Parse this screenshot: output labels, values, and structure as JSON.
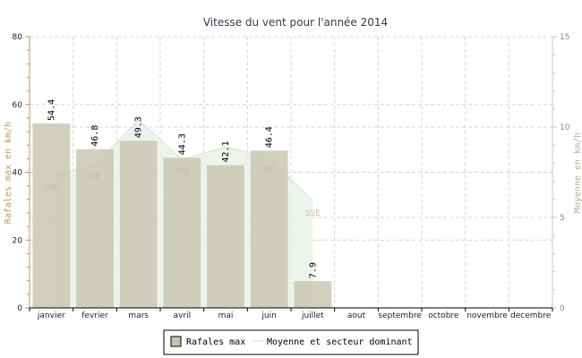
{
  "chart_data": {
    "type": "bar",
    "title": "Vitesse du vent pour l'année 2014",
    "categories": [
      "janvier",
      "fevrier",
      "mars",
      "avril",
      "mai",
      "juin",
      "juillet",
      "aout",
      "septembre",
      "octobre",
      "novembre",
      "decembre"
    ],
    "ylabel": "Rafales max en km/h",
    "ylabel_right": "Moyenne en km/h",
    "ylim": [
      0,
      80
    ],
    "yticks": [
      "0",
      "20",
      "40",
      "60",
      "80"
    ],
    "ylim_right": [
      0,
      15
    ],
    "yticks_right": [
      "0",
      "5",
      "10",
      "15"
    ],
    "grid": true,
    "legend_position": "bottom",
    "series": [
      {
        "name": "Rafales max",
        "type": "bar",
        "color": "#c8c6ae",
        "values": [
          54.4,
          46.8,
          49.3,
          44.3,
          42.1,
          46.4,
          7.9,
          null,
          null,
          null,
          null,
          null
        ],
        "labels": [
          "54.4",
          "46.8",
          "49.3",
          "44.3",
          "42.1",
          "46.4",
          "7.9",
          "",
          "",
          "",
          "",
          ""
        ]
      },
      {
        "name": "Moyenne et secteur dominant",
        "type": "area",
        "axis": "right",
        "color": "#e6f2e6",
        "values": [
          7.3,
          7.9,
          10.4,
          8.2,
          8.9,
          8.3,
          5.9,
          null,
          null,
          null,
          null,
          null
        ],
        "sectors": [
          "OSO",
          "SE",
          "",
          "SSE",
          "",
          "SE",
          "SSE",
          "",
          "",
          "",
          "",
          ""
        ]
      }
    ]
  },
  "legend": {
    "bar_label": "Rafales max",
    "area_label": "Moyenne et secteur dominant"
  }
}
